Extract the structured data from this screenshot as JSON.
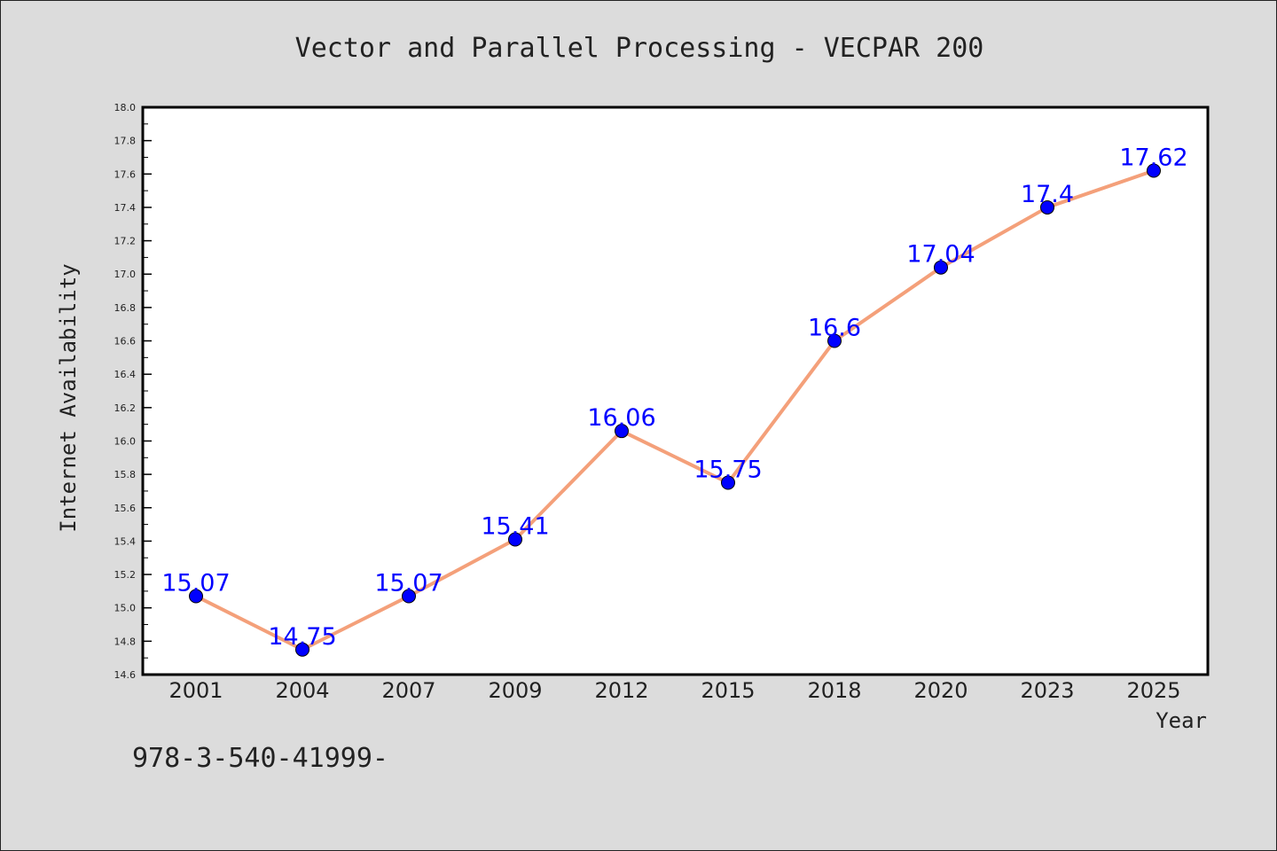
{
  "chart_data": {
    "type": "line",
    "title": "Vector and Parallel Processing - VECPAR 200",
    "xlabel": "Year",
    "ylabel": "Internet Availability",
    "categories": [
      "2001",
      "2004",
      "2007",
      "2009",
      "2012",
      "2015",
      "2018",
      "2020",
      "2023",
      "2025"
    ],
    "series": [
      {
        "values": [
          15.07,
          14.75,
          15.07,
          15.41,
          16.06,
          15.75,
          16.6,
          17.04,
          17.4,
          17.62
        ],
        "data_labels": [
          "15.07",
          "14.75",
          "15.07",
          "15.41",
          "16.06",
          "15.75",
          "16.6",
          "17.04",
          "17.4",
          "17.62"
        ],
        "line_color": "#f4a07a",
        "marker_color": "#0000ff"
      }
    ],
    "ylim": [
      14.6,
      18.0
    ],
    "yticks": [
      "14.6",
      "14.8",
      "15.0",
      "15.2",
      "15.4",
      "15.6",
      "15.8",
      "16.0",
      "16.2",
      "16.4",
      "16.6",
      "16.8",
      "17.0",
      "17.2",
      "17.4",
      "17.6",
      "17.8",
      "18.0"
    ],
    "grid": false,
    "legend": "none",
    "annotation": "978-3-540-41999-"
  },
  "colors": {
    "background": "#dcdcdc",
    "plot_background": "#ffffff",
    "label_color": "#0000ff",
    "text": "#222222"
  }
}
